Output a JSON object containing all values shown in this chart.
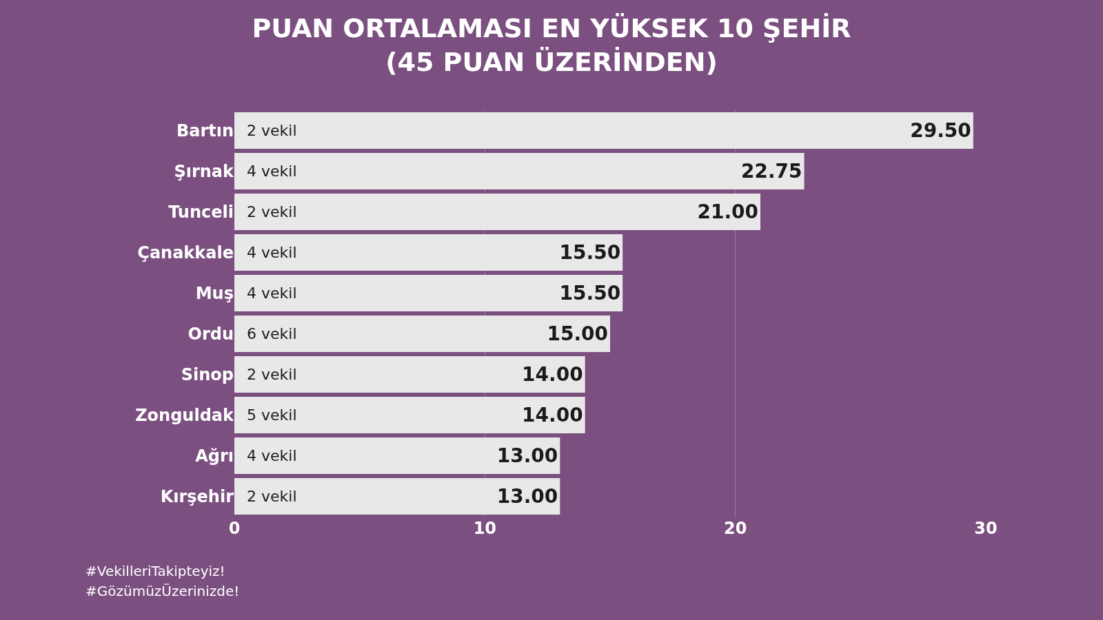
{
  "chart_data": {
    "type": "bar",
    "orientation": "horizontal",
    "title": "PUAN ORTALAMASI EN YÜKSEK 10 ŞEHİR\n(45 PUAN ÜZERİNDEN)",
    "categories": [
      "Bartın",
      "Şırnak",
      "Tunceli",
      "Çanakkale",
      "Muş",
      "Ordu",
      "Sinop",
      "Zonguldak",
      "Ağrı",
      "Kırşehir"
    ],
    "values": [
      29.5,
      22.75,
      21.0,
      15.5,
      15.5,
      15.0,
      14.0,
      14.0,
      13.0,
      13.0
    ],
    "value_labels": [
      "29.50",
      "22.75",
      "21.00",
      "15.50",
      "15.50",
      "15.00",
      "14.00",
      "14.00",
      "13.00",
      "13.00"
    ],
    "color": "#e8e8e8",
    "xlim": [
      0,
      30
    ],
    "xticks": [
      0,
      10,
      20,
      30
    ],
    "grid": "x",
    "legend": false,
    "annotations": [
      {
        "text": "2 vekil",
        "y": "Bartın"
      },
      {
        "text": "4 vekil",
        "y": "Şırnak"
      },
      {
        "text": "2 vekil",
        "y": "Tunceli"
      },
      {
        "text": "4 vekil",
        "y": "Çanakkale"
      },
      {
        "text": "4 vekil",
        "y": "Muş"
      },
      {
        "text": "6 vekil",
        "y": "Ordu"
      },
      {
        "text": "2 vekil",
        "y": "Sinop"
      },
      {
        "text": "5 vekil",
        "y": "Zonguldak"
      },
      {
        "text": "4 vekil",
        "y": "Ağrı"
      },
      {
        "text": "2 vekil",
        "y": "Kırşehir"
      },
      "#VekilleriTakipteyiz!",
      "#GözümüzÜzerinizde!"
    ]
  }
}
